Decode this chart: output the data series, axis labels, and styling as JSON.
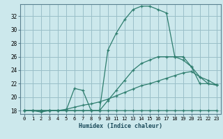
{
  "xlabel": "Humidex (Indice chaleur)",
  "bg_color": "#cce8ec",
  "grid_color": "#9abfc8",
  "line_color": "#2e7d6e",
  "xlim": [
    -0.5,
    23.5
  ],
  "ylim": [
    17.5,
    33.8
  ],
  "xticks": [
    0,
    1,
    2,
    3,
    4,
    5,
    6,
    7,
    8,
    9,
    10,
    11,
    12,
    13,
    14,
    15,
    16,
    17,
    18,
    19,
    20,
    21,
    22,
    23
  ],
  "yticks": [
    18,
    20,
    22,
    24,
    26,
    28,
    30,
    32
  ],
  "series1_y": [
    18,
    18,
    17.8,
    18,
    18,
    18,
    18,
    18,
    18,
    18,
    18,
    18,
    18,
    18,
    18,
    18,
    18,
    18,
    18,
    18,
    18,
    18,
    18,
    18
  ],
  "series2_y": [
    18,
    18,
    18,
    18,
    18,
    18.2,
    18.5,
    18.8,
    19,
    19.3,
    19.7,
    20.2,
    20.7,
    21.2,
    21.7,
    22,
    22.4,
    22.8,
    23.2,
    23.6,
    23.8,
    23,
    22.5,
    21.8
  ],
  "series3_y": [
    18,
    18,
    18,
    18,
    18,
    18,
    18,
    18,
    18,
    18,
    19.5,
    21,
    22.5,
    24,
    25,
    25.5,
    26,
    26,
    26,
    25.5,
    24.5,
    23,
    22,
    21.8
  ],
  "series4_y": [
    18,
    18,
    18,
    18,
    18,
    18,
    21.3,
    21,
    18,
    18,
    27,
    29.5,
    31.5,
    33,
    33.5,
    33.5,
    33,
    32.5,
    26,
    26,
    24.5,
    22,
    22,
    21.8
  ]
}
